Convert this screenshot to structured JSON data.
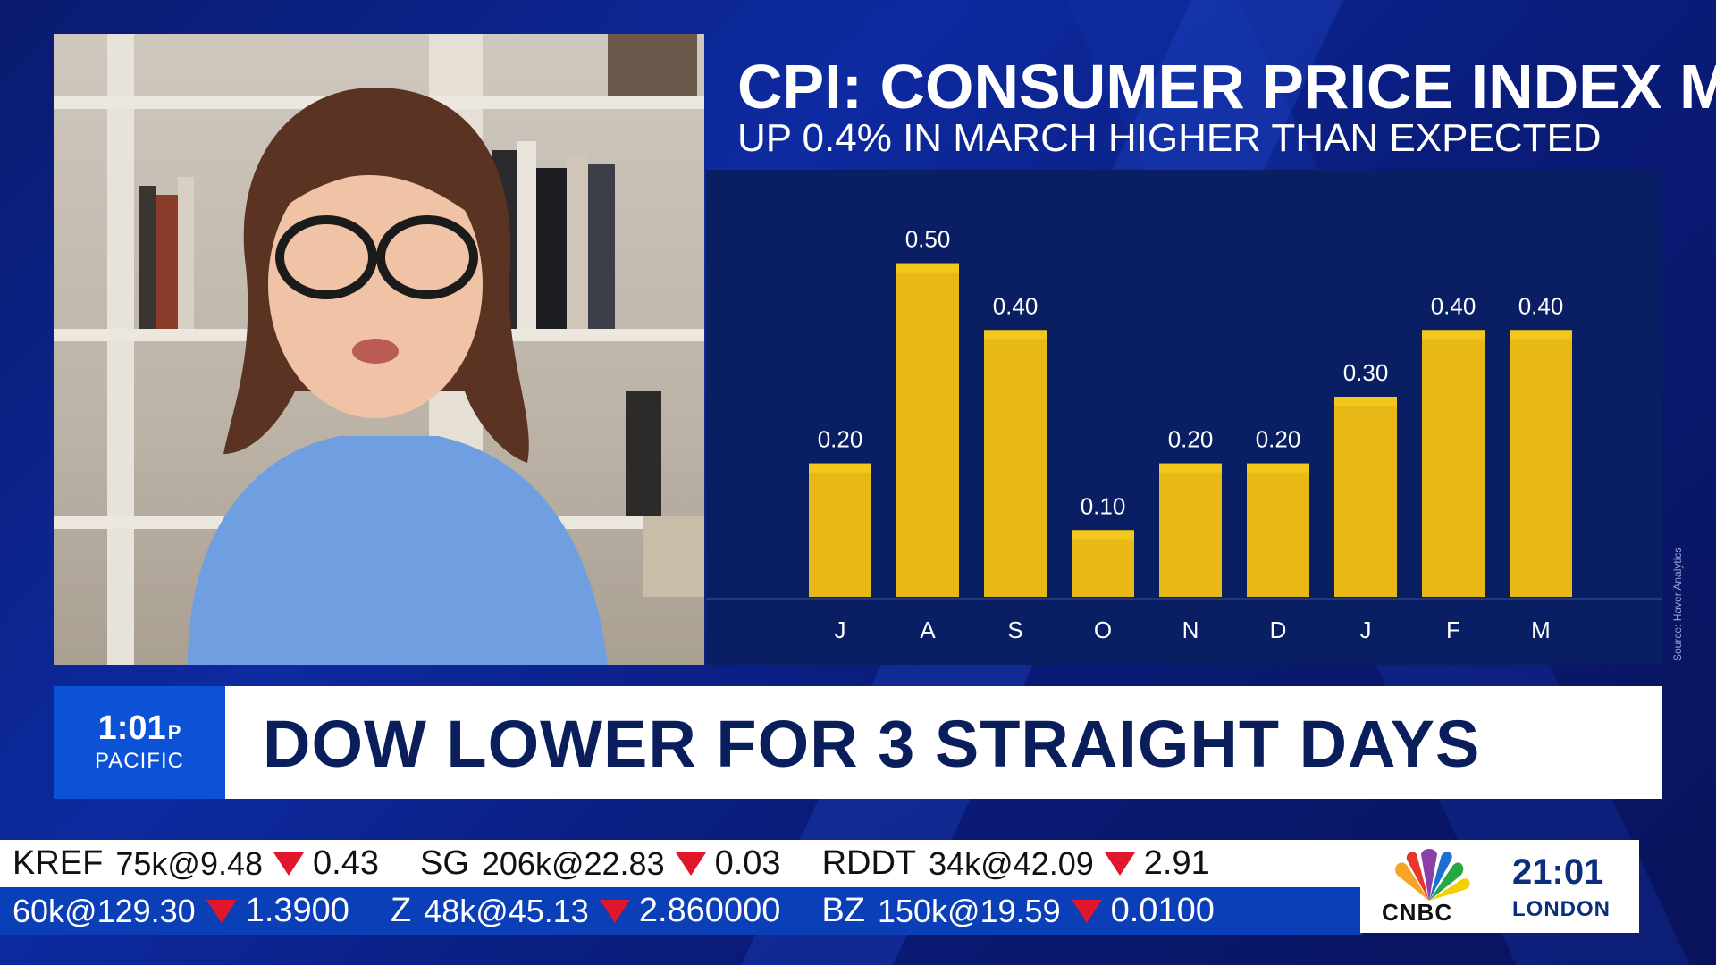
{
  "graphic": {
    "title": "CPI: CONSUMER PRICE INDEX M/M",
    "subtitle": "UP 0.4% IN MARCH HIGHER THAN EXPECTED",
    "source": "Source: Haver Analytics"
  },
  "chart_data": {
    "type": "bar",
    "title": "CPI: CONSUMER PRICE INDEX M/M",
    "subtitle": "UP 0.4% IN MARCH HIGHER THAN EXPECTED",
    "categories": [
      "J",
      "A",
      "S",
      "O",
      "N",
      "D",
      "J",
      "F",
      "M"
    ],
    "values": [
      0.2,
      0.5,
      0.4,
      0.1,
      0.2,
      0.2,
      0.3,
      0.4,
      0.4
    ],
    "labels": [
      "0.20",
      "0.50",
      "0.40",
      "0.10",
      "0.20",
      "0.20",
      "0.30",
      "0.40",
      "0.40"
    ],
    "xlabel": "",
    "ylabel": "",
    "ylim": [
      0,
      0.6
    ],
    "grid": false,
    "bar_color": "#e8b914",
    "bar_top_color": "#f2c81d"
  },
  "lower_third": {
    "time": "1:01",
    "ampm": "P",
    "zone": "PACIFIC",
    "headline": "DOW LOWER FOR 3 STRAIGHT DAYS"
  },
  "ticker": {
    "row1": [
      {
        "symbol": "KREF",
        "trade": "75k@9.48",
        "change": "0.43",
        "direction": "down"
      },
      {
        "symbol": "SG",
        "trade": "206k@22.83",
        "change": "0.03",
        "direction": "down"
      },
      {
        "symbol": "RDDT",
        "trade": "34k@42.09",
        "change": "2.91",
        "direction": "down"
      }
    ],
    "row2": [
      {
        "symbol": "",
        "trade": "60k@129.30",
        "change": "1.3900",
        "direction": "down"
      },
      {
        "symbol": "Z",
        "trade": "48k@45.13",
        "change": "2.860000",
        "direction": "down"
      },
      {
        "symbol": "BZ",
        "trade": "150k@19.59",
        "change": "0.0100",
        "direction": "down"
      }
    ]
  },
  "network": {
    "logo": "CNBC",
    "local_time": "21:01",
    "local_city": "LONDON"
  },
  "colors": {
    "accent_blue": "#0b52d6",
    "headline_navy": "#0b1e5c",
    "down_red": "#e0162b",
    "chart_bg": "#0a1f63"
  }
}
